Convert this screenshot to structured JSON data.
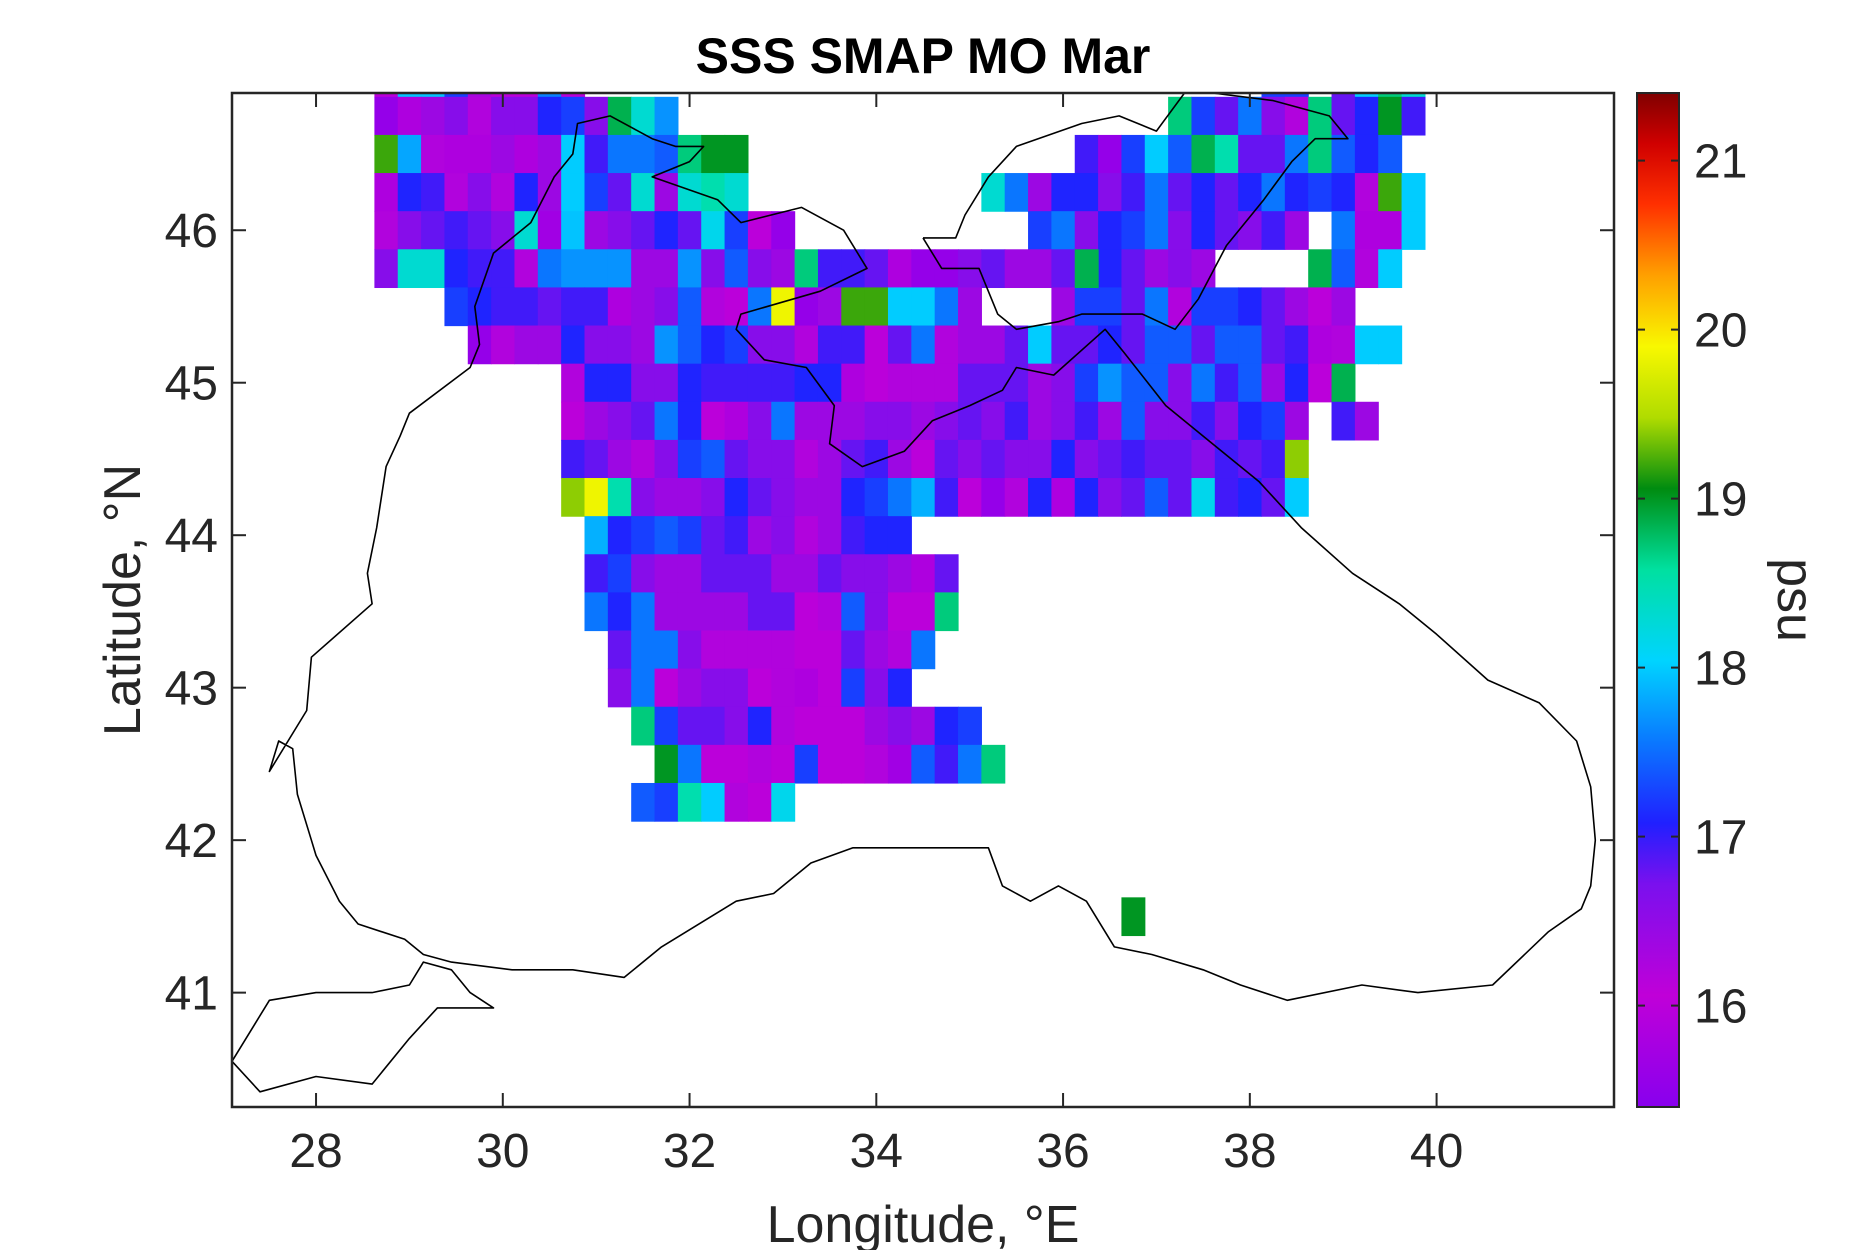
{
  "chart_data": {
    "type": "heatmap",
    "title": "SSS SMAP MO Mar",
    "xlabel": "Longitude, °E",
    "ylabel": "Latitude, °N",
    "xlim": [
      27.1,
      41.9
    ],
    "ylim": [
      40.25,
      46.9
    ],
    "x_ticks": [
      "28",
      "30",
      "32",
      "34",
      "36",
      "38",
      "40"
    ],
    "y_ticks": [
      "41",
      "42",
      "43",
      "44",
      "45",
      "46"
    ],
    "grid": false,
    "cell_size_deg": 0.25,
    "colorbar": {
      "label": "psu",
      "range": [
        15.4,
        21.4
      ],
      "ticks": [
        "16",
        "17",
        "18",
        "19",
        "20",
        "21"
      ],
      "colormap": "jet"
    },
    "grid_origin": {
      "lon": 28.25,
      "lat": 41.25
    },
    "rows": [
      "...................#########...................",
      "........RmC..RD.................E.PXRiRDMFPG...",
      "..DnnKoDDmD.............................KK.HPTR",
      "..ACFGEGGJKGURN.....................TKHMGETHJVI",
      "..WtECCFCFPIMMLTVV..............IAKPLUSHHMTLJL.",
      "..CJIEGEJFPKHRFRSR..........RMFJJGIMHJHJMJKJEWP",
      "..EGHIHGRBnFGHJHQKDA..........KMGJKMGJHGIF.MCCP",
      "..GRRJIIEMNNNFFNGLGFTIIHCAAGHFFHHJHFGF....ULEP.",
      ".....KJIIHIICFGLEDMZAFWWPPMF...FKKHMEKKJHFDF...",
      "......AEFFJGGFNLJKGGEIIDHMEFFHPHHJHLLHLLHICEPP..",
      "..........EJJGGJIIIIJJCDEEEHHHFGKNLLGMILFJDU....",
      "..........DFGHMJDCGMFFFGGFGHGIFGIFLGGIGJKF.IF...",
      "..........IHFEGKLHGGEFHIFDHGHGGJGHIHHGIHIX.....",
      "..........XZSGFFGJHGFFJKMOIDAEJCJGHLHQIJHP.....",
      "...........OJKLKHIFGEFIJJ......................",
      "...........IKGFFHHHFFHGGFCH.....................",
      "...........MJMFFFFHHDELGDDT.....................",
      "............HMMGEEEEDDHFEM.......................",
      "............GMDFGGDECDKGJ........................",
      ".............TKHHGJEDDDFGFJK....................",
      "..............VMDDEDKDDEBLIMT....................",
      ".............LKSPEDQ............................",
      "................................................",
      "................................................",
      "..................................V.............",
      "................................................"
    ],
    "isolated_cells": [
      {
        "lon": 36.25,
        "lat": 45.75,
        "value": 18.85
      }
    ],
    "value_key": {
      "A": 15.55,
      "B": 15.7,
      "C": 15.85,
      "D": 16.0,
      "E": 16.2,
      "F": 16.4,
      "G": 16.6,
      "H": 16.8,
      "I": 16.95,
      "J": 17.1,
      "K": 17.25,
      "L": 17.4,
      "M": 17.55,
      "N": 17.7,
      "O": 17.85,
      "P": 18.0,
      "Q": 18.15,
      "R": 18.3,
      "S": 18.5,
      "T": 18.7,
      "U": 18.85,
      "V": 19.0,
      "W": 19.2,
      "X": 19.4,
      "Y": 19.65,
      "Z": 19.85,
      "a": 20.05,
      "b": 20.3,
      "c": 20.5,
      "d": 20.7,
      "e": 20.85,
      "f": 21.0,
      "g": 21.15,
      "h": 21.3,
      "i": 21.4,
      "m": 17.6,
      "n": 17.95,
      "o": 16.3,
      "p": 21.2,
      "q": 16.5,
      "r": 17.0,
      "s": 16.7,
      "t": 17.8,
      "u": 18.1,
      "v": 19.5,
      "w": 15.9,
      "x": 20.9,
      "y": 21.35,
      "z": 17.3
    },
    "coastline": [
      [
        [
          27.95,
          42.0
        ],
        [
          27.8,
          42.3
        ],
        [
          27.75,
          42.6
        ],
        [
          27.6,
          42.65
        ],
        [
          27.5,
          42.45
        ],
        [
          27.9,
          42.85
        ],
        [
          27.95,
          43.2
        ],
        [
          28.6,
          43.55
        ],
        [
          28.55,
          43.75
        ],
        [
          28.65,
          44.05
        ],
        [
          28.75,
          44.45
        ],
        [
          28.9,
          44.65
        ],
        [
          29.0,
          44.8
        ],
        [
          29.65,
          45.1
        ],
        [
          29.75,
          45.25
        ],
        [
          29.7,
          45.5
        ],
        [
          29.9,
          45.85
        ],
        [
          30.3,
          46.05
        ],
        [
          30.55,
          46.35
        ],
        [
          30.75,
          46.5
        ],
        [
          30.8,
          46.7
        ],
        [
          31.15,
          46.75
        ],
        [
          31.6,
          46.6
        ],
        [
          31.85,
          46.55
        ],
        [
          32.15,
          46.55
        ],
        [
          32.0,
          46.45
        ],
        [
          31.6,
          46.35
        ],
        [
          32.3,
          46.2
        ],
        [
          32.55,
          46.05
        ],
        [
          33.2,
          46.15
        ],
        [
          33.65,
          46.0
        ],
        [
          33.9,
          45.75
        ],
        [
          33.4,
          45.6
        ],
        [
          32.55,
          45.45
        ],
        [
          32.5,
          45.35
        ],
        [
          32.8,
          45.15
        ],
        [
          33.25,
          45.1
        ],
        [
          33.55,
          44.85
        ],
        [
          33.5,
          44.6
        ],
        [
          33.85,
          44.45
        ],
        [
          34.3,
          44.55
        ],
        [
          34.6,
          44.75
        ],
        [
          35.0,
          44.85
        ],
        [
          35.35,
          44.95
        ],
        [
          35.5,
          45.1
        ],
        [
          35.9,
          45.05
        ],
        [
          36.45,
          45.35
        ],
        [
          36.65,
          45.2
        ],
        [
          37.1,
          44.85
        ],
        [
          37.6,
          44.6
        ],
        [
          38.1,
          44.35
        ],
        [
          38.55,
          44.05
        ],
        [
          39.1,
          43.75
        ],
        [
          39.6,
          43.55
        ],
        [
          40.0,
          43.35
        ],
        [
          40.55,
          43.05
        ],
        [
          41.1,
          42.9
        ],
        [
          41.5,
          42.65
        ],
        [
          41.65,
          42.35
        ],
        [
          41.7,
          42.0
        ],
        [
          41.65,
          41.7
        ],
        [
          41.55,
          41.55
        ],
        [
          41.2,
          41.4
        ],
        [
          40.6,
          41.05
        ],
        [
          39.8,
          41.0
        ],
        [
          39.2,
          41.05
        ],
        [
          38.4,
          40.95
        ],
        [
          37.9,
          41.05
        ],
        [
          37.5,
          41.15
        ],
        [
          36.95,
          41.25
        ],
        [
          36.55,
          41.3
        ],
        [
          36.25,
          41.6
        ],
        [
          35.95,
          41.7
        ],
        [
          35.65,
          41.6
        ],
        [
          35.35,
          41.7
        ],
        [
          35.2,
          41.95
        ],
        [
          34.8,
          41.95
        ],
        [
          34.15,
          41.95
        ],
        [
          33.75,
          41.95
        ],
        [
          33.3,
          41.85
        ],
        [
          32.9,
          41.65
        ],
        [
          32.5,
          41.6
        ],
        [
          31.7,
          41.3
        ],
        [
          31.3,
          41.1
        ],
        [
          30.75,
          41.15
        ],
        [
          30.1,
          41.15
        ],
        [
          29.45,
          41.2
        ],
        [
          29.15,
          41.25
        ],
        [
          28.95,
          41.35
        ],
        [
          28.45,
          41.45
        ],
        [
          28.25,
          41.6
        ],
        [
          28.0,
          41.9
        ],
        [
          27.95,
          42.0
        ]
      ],
      [
        [
          34.5,
          45.95
        ],
        [
          34.7,
          45.75
        ],
        [
          35.1,
          45.75
        ],
        [
          35.3,
          45.45
        ],
        [
          35.5,
          45.35
        ],
        [
          35.95,
          45.4
        ],
        [
          36.2,
          45.45
        ],
        [
          36.55,
          45.45
        ],
        [
          36.85,
          45.45
        ],
        [
          37.2,
          45.35
        ],
        [
          37.45,
          45.55
        ],
        [
          37.75,
          45.9
        ],
        [
          38.15,
          46.2
        ],
        [
          38.45,
          46.45
        ],
        [
          38.7,
          46.6
        ],
        [
          39.05,
          46.6
        ],
        [
          38.85,
          46.75
        ],
        [
          38.25,
          46.85
        ],
        [
          37.6,
          46.9
        ],
        [
          37.3,
          46.9
        ],
        [
          37.0,
          46.65
        ],
        [
          36.6,
          46.75
        ],
        [
          36.2,
          46.7
        ],
        [
          35.5,
          46.55
        ],
        [
          35.2,
          46.35
        ],
        [
          34.95,
          46.1
        ],
        [
          34.85,
          45.95
        ],
        [
          34.5,
          45.95
        ]
      ],
      [
        [
          27.1,
          40.55
        ],
        [
          27.5,
          40.95
        ],
        [
          28.0,
          41.0
        ],
        [
          28.6,
          41.0
        ],
        [
          29.0,
          41.05
        ],
        [
          29.15,
          41.2
        ],
        [
          29.45,
          41.15
        ],
        [
          29.65,
          41.0
        ],
        [
          29.9,
          40.9
        ],
        [
          29.3,
          40.9
        ],
        [
          29.0,
          40.7
        ],
        [
          28.6,
          40.4
        ],
        [
          28.0,
          40.45
        ],
        [
          27.4,
          40.35
        ],
        [
          27.1,
          40.55
        ]
      ]
    ]
  }
}
